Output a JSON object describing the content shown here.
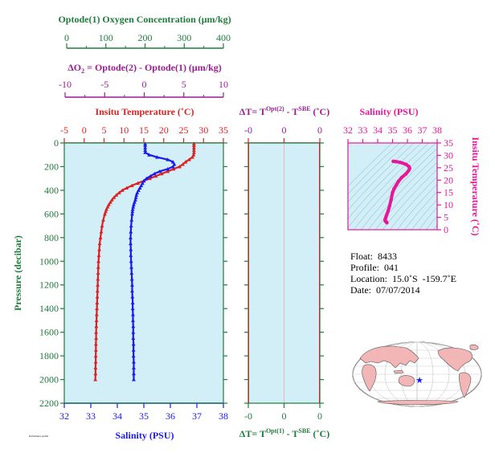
{
  "colors": {
    "green": "#1e7b3c",
    "purple": "#9a1d93",
    "red": "#dd2020",
    "blue": "#1a1aee",
    "magenta": "#e8169a",
    "panel_bg": "#d2eff8",
    "land": "#f3b6b6"
  },
  "chart_data": [
    {
      "type": "line",
      "title": "",
      "ylabel": "Pressure (decibar)",
      "ylim": [
        2200,
        0
      ],
      "yticks": [
        "0",
        "200",
        "400",
        "600",
        "800",
        "1000",
        "1200",
        "1400",
        "1600",
        "1800",
        "2000",
        "2200"
      ],
      "xaxes": {
        "oxygen": {
          "label": "Optode(1) Oxygen Concentration (μm/kg)",
          "range": [
            0,
            400
          ],
          "ticks": [
            "0",
            "100",
            "200",
            "300",
            "400"
          ]
        },
        "delta_o2": {
          "label_prefix": "ΔO",
          "label_sub": "2",
          "label_rest": " = Optode(2) - Optode(1)   (μm/kg)",
          "range": [
            -10,
            10
          ],
          "ticks": [
            "-10",
            "-5",
            "0",
            "5",
            "10"
          ]
        },
        "temperature": {
          "label": "Insitu Temperature (˚C)",
          "range": [
            -5,
            35
          ],
          "ticks": [
            "-5",
            "0",
            "5",
            "10",
            "15",
            "20",
            "25",
            "30",
            "35"
          ]
        },
        "salinity": {
          "label": "Salinity (PSU)",
          "range": [
            32,
            38
          ],
          "ticks": [
            "32",
            "33",
            "34",
            "35",
            "36",
            "37",
            "38"
          ]
        }
      },
      "series": [
        {
          "name": "Insitu Temperature",
          "axis": "temperature",
          "pressure": [
            5,
            20,
            40,
            60,
            80,
            100,
            120,
            140,
            160,
            180,
            200,
            220,
            240,
            260,
            280,
            300,
            320,
            340,
            360,
            380,
            400,
            420,
            440,
            460,
            480,
            500,
            520,
            540,
            560,
            580,
            600,
            650,
            700,
            750,
            800,
            850,
            900,
            950,
            1000,
            1050,
            1100,
            1150,
            1200,
            1250,
            1300,
            1350,
            1400,
            1450,
            1500,
            1550,
            1600,
            1650,
            1700,
            1750,
            1800,
            1850,
            1900,
            1950,
            2000
          ],
          "values": [
            27.6,
            27.6,
            27.6,
            27.6,
            27.6,
            27.5,
            27.2,
            26.4,
            25.5,
            24.8,
            24.0,
            22.5,
            21.0,
            19.5,
            18.0,
            16.5,
            15.0,
            13.5,
            12.0,
            10.7,
            9.6,
            8.8,
            8.1,
            7.5,
            7.0,
            6.6,
            6.2,
            5.9,
            5.6,
            5.4,
            5.2,
            4.8,
            4.5,
            4.3,
            4.1,
            3.9,
            3.8,
            3.7,
            3.6,
            3.55,
            3.5,
            3.45,
            3.4,
            3.35,
            3.3,
            3.25,
            3.2,
            3.15,
            3.1,
            3.05,
            3.0,
            3.0,
            2.95,
            2.95,
            2.9,
            2.9,
            2.85,
            2.85,
            2.8
          ]
        },
        {
          "name": "Salinity",
          "axis": "salinity",
          "pressure": [
            5,
            20,
            40,
            60,
            80,
            100,
            120,
            140,
            160,
            180,
            200,
            220,
            240,
            260,
            280,
            300,
            320,
            340,
            360,
            380,
            400,
            420,
            440,
            460,
            480,
            500,
            520,
            540,
            560,
            580,
            600,
            650,
            700,
            750,
            800,
            850,
            900,
            950,
            1000,
            1050,
            1100,
            1150,
            1200,
            1250,
            1300,
            1350,
            1400,
            1450,
            1500,
            1550,
            1600,
            1650,
            1700,
            1750,
            1800,
            1850,
            1900,
            1950,
            2000
          ],
          "values": [
            35.05,
            35.05,
            35.05,
            35.05,
            35.05,
            35.2,
            35.5,
            35.9,
            36.1,
            36.15,
            36.1,
            35.9,
            35.6,
            35.4,
            35.25,
            35.1,
            35.0,
            34.95,
            34.9,
            34.85,
            34.8,
            34.75,
            34.72,
            34.7,
            34.68,
            34.65,
            34.62,
            34.6,
            34.58,
            34.57,
            34.56,
            34.54,
            34.52,
            34.51,
            34.5,
            34.5,
            34.51,
            34.51,
            34.52,
            34.53,
            34.54,
            34.55,
            34.56,
            34.56,
            34.57,
            34.58,
            34.58,
            34.59,
            34.59,
            34.6,
            34.6,
            34.6,
            34.61,
            34.61,
            34.61,
            34.62,
            34.62,
            34.62,
            34.62
          ]
        }
      ]
    },
    {
      "type": "line",
      "title": "",
      "ylim": [
        2200,
        0
      ],
      "top_label": {
        "pre": "ΔT= T",
        "sup1": "Opt(2)",
        "mid": " - T",
        "sup2": "SBE",
        "post": " (˚C)"
      },
      "bottom_label": {
        "pre": "ΔT= T",
        "sup1": "Opt(1)",
        "mid": " - T",
        "sup2": "SBE",
        "post": " (˚C)"
      },
      "xrange": [
        -1,
        1
      ],
      "top_ticks": [
        "-0",
        "0",
        "0"
      ],
      "bottom_ticks": [
        "-0",
        "0",
        "0"
      ],
      "series": []
    },
    {
      "type": "scatter",
      "title": "",
      "xlabel": "Salinity (PSU)",
      "ylabel": "Insitu Temperature (˚C)",
      "xlim": [
        32,
        38
      ],
      "ylim": [
        0,
        35
      ],
      "xticks": [
        "32",
        "33",
        "34",
        "35",
        "36",
        "37",
        "38"
      ],
      "yticks": [
        "0",
        "5",
        "10",
        "15",
        "20",
        "25",
        "30",
        "35"
      ],
      "series": [
        {
          "salinity": [
            35.05,
            35.2,
            35.5,
            35.9,
            36.1,
            36.15,
            36.1,
            35.9,
            35.6,
            35.4,
            35.25,
            35.1,
            35.0,
            34.9,
            34.8,
            34.7,
            34.62,
            34.57,
            34.54,
            34.51,
            34.5,
            34.52,
            34.55,
            34.58,
            34.6,
            34.62
          ],
          "temperature": [
            27.6,
            27.5,
            27.2,
            26.4,
            25.5,
            24.8,
            24.0,
            22.5,
            21.0,
            19.5,
            18.0,
            16.5,
            15.0,
            12.0,
            9.6,
            7.5,
            6.2,
            5.4,
            4.8,
            4.3,
            3.8,
            3.5,
            3.3,
            3.1,
            3.0,
            2.8
          ]
        }
      ]
    }
  ],
  "info": {
    "float": "Float:  8433",
    "profile": "Profile:  041",
    "location": "Location:  15.0˚S  -159.7˚E",
    "date": "Date:  07/07/2014"
  },
  "map": {
    "marker": "★"
  },
  "footer_tiny": "Performance profile"
}
